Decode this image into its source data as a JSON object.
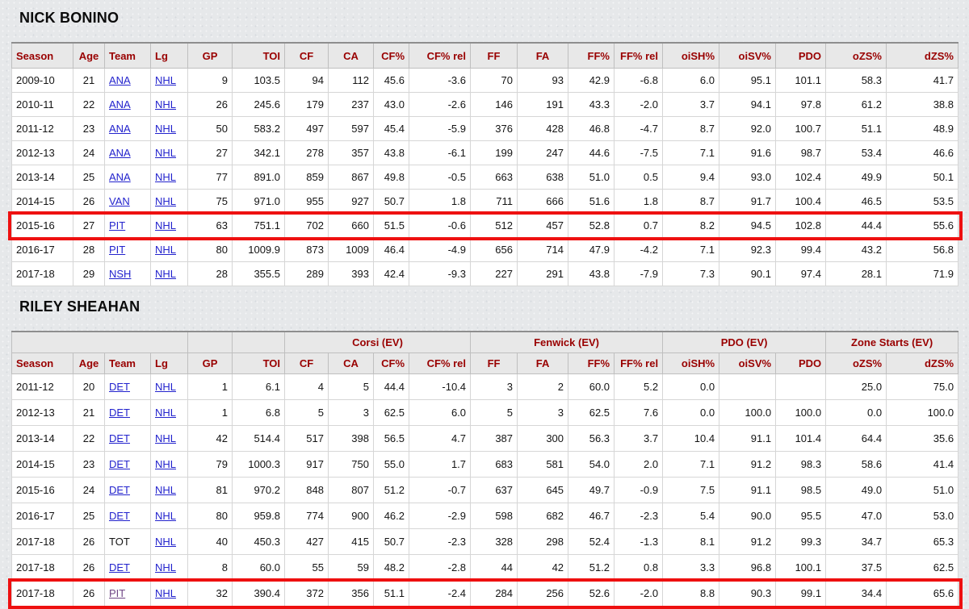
{
  "colors": {
    "header_text": "#990000",
    "header_bg": "#e8e8e8",
    "link": "#2323cd",
    "link_visited": "#6f4685",
    "highlight_border": "#ee1010",
    "title_text": "#0b0b0b",
    "cell_text": "#141414"
  },
  "columns": [
    "Season",
    "Age",
    "Team",
    "Lg",
    "GP",
    "TOI",
    "CF",
    "CA",
    "CF%",
    "CF% rel",
    "FF",
    "FA",
    "FF%",
    "FF% rel",
    "oiSH%",
    "oiSV%",
    "PDO",
    "oZS%",
    "dZS%"
  ],
  "players": [
    {
      "name": "NICK BONINO",
      "rows": [
        {
          "season": "2009-10",
          "age": "21",
          "team": "ANA",
          "team_is_link": true,
          "lg": "NHL",
          "stats": [
            "9",
            "103.5",
            "94",
            "112",
            "45.6",
            "-3.6",
            "70",
            "93",
            "42.9",
            "-6.8",
            "6.0",
            "95.1",
            "101.1",
            "58.3",
            "41.7"
          ],
          "highlight": false
        },
        {
          "season": "2010-11",
          "age": "22",
          "team": "ANA",
          "team_is_link": true,
          "lg": "NHL",
          "stats": [
            "26",
            "245.6",
            "179",
            "237",
            "43.0",
            "-2.6",
            "146",
            "191",
            "43.3",
            "-2.0",
            "3.7",
            "94.1",
            "97.8",
            "61.2",
            "38.8"
          ],
          "highlight": false
        },
        {
          "season": "2011-12",
          "age": "23",
          "team": "ANA",
          "team_is_link": true,
          "lg": "NHL",
          "stats": [
            "50",
            "583.2",
            "497",
            "597",
            "45.4",
            "-5.9",
            "376",
            "428",
            "46.8",
            "-4.7",
            "8.7",
            "92.0",
            "100.7",
            "51.1",
            "48.9"
          ],
          "highlight": false
        },
        {
          "season": "2012-13",
          "age": "24",
          "team": "ANA",
          "team_is_link": true,
          "lg": "NHL",
          "stats": [
            "27",
            "342.1",
            "278",
            "357",
            "43.8",
            "-6.1",
            "199",
            "247",
            "44.6",
            "-7.5",
            "7.1",
            "91.6",
            "98.7",
            "53.4",
            "46.6"
          ],
          "highlight": false
        },
        {
          "season": "2013-14",
          "age": "25",
          "team": "ANA",
          "team_is_link": true,
          "lg": "NHL",
          "stats": [
            "77",
            "891.0",
            "859",
            "867",
            "49.8",
            "-0.5",
            "663",
            "638",
            "51.0",
            "0.5",
            "9.4",
            "93.0",
            "102.4",
            "49.9",
            "50.1"
          ],
          "highlight": false
        },
        {
          "season": "2014-15",
          "age": "26",
          "team": "VAN",
          "team_is_link": true,
          "lg": "NHL",
          "stats": [
            "75",
            "971.0",
            "955",
            "927",
            "50.7",
            "1.8",
            "711",
            "666",
            "51.6",
            "1.8",
            "8.7",
            "91.7",
            "100.4",
            "46.5",
            "53.5"
          ],
          "highlight": false
        },
        {
          "season": "2015-16",
          "age": "27",
          "team": "PIT",
          "team_is_link": true,
          "lg": "NHL",
          "stats": [
            "63",
            "751.1",
            "702",
            "660",
            "51.5",
            "-0.6",
            "512",
            "457",
            "52.8",
            "0.7",
            "8.2",
            "94.5",
            "102.8",
            "44.4",
            "55.6"
          ],
          "highlight": true
        },
        {
          "season": "2016-17",
          "age": "28",
          "team": "PIT",
          "team_is_link": true,
          "lg": "NHL",
          "stats": [
            "80",
            "1009.9",
            "873",
            "1009",
            "46.4",
            "-4.9",
            "656",
            "714",
            "47.9",
            "-4.2",
            "7.1",
            "92.3",
            "99.4",
            "43.2",
            "56.8"
          ],
          "highlight": false
        },
        {
          "season": "2017-18",
          "age": "29",
          "team": "NSH",
          "team_is_link": true,
          "lg": "NHL",
          "stats": [
            "28",
            "355.5",
            "289",
            "393",
            "42.4",
            "-9.3",
            "227",
            "291",
            "43.8",
            "-7.9",
            "7.3",
            "90.1",
            "97.4",
            "28.1",
            "71.9"
          ],
          "highlight": false
        }
      ]
    },
    {
      "name": "RILEY SHEAHAN",
      "group_headers": [
        {
          "label": "",
          "span": 4
        },
        {
          "label": "",
          "span": 1
        },
        {
          "label": "",
          "span": 1
        },
        {
          "label": "Corsi (EV)",
          "span": 4
        },
        {
          "label": "Fenwick (EV)",
          "span": 4
        },
        {
          "label": "PDO (EV)",
          "span": 3
        },
        {
          "label": "Zone Starts (EV)",
          "span": 2
        }
      ],
      "rows": [
        {
          "season": "2011-12",
          "age": "20",
          "team": "DET",
          "team_is_link": true,
          "lg": "NHL",
          "stats": [
            "1",
            "6.1",
            "4",
            "5",
            "44.4",
            "-10.4",
            "3",
            "2",
            "60.0",
            "5.2",
            "0.0",
            "",
            "",
            "25.0",
            "75.0"
          ],
          "highlight": false
        },
        {
          "season": "2012-13",
          "age": "21",
          "team": "DET",
          "team_is_link": true,
          "lg": "NHL",
          "stats": [
            "1",
            "6.8",
            "5",
            "3",
            "62.5",
            "6.0",
            "5",
            "3",
            "62.5",
            "7.6",
            "0.0",
            "100.0",
            "100.0",
            "0.0",
            "100.0"
          ],
          "highlight": false
        },
        {
          "season": "2013-14",
          "age": "22",
          "team": "DET",
          "team_is_link": true,
          "lg": "NHL",
          "stats": [
            "42",
            "514.4",
            "517",
            "398",
            "56.5",
            "4.7",
            "387",
            "300",
            "56.3",
            "3.7",
            "10.4",
            "91.1",
            "101.4",
            "64.4",
            "35.6"
          ],
          "highlight": false
        },
        {
          "season": "2014-15",
          "age": "23",
          "team": "DET",
          "team_is_link": true,
          "lg": "NHL",
          "stats": [
            "79",
            "1000.3",
            "917",
            "750",
            "55.0",
            "1.7",
            "683",
            "581",
            "54.0",
            "2.0",
            "7.1",
            "91.2",
            "98.3",
            "58.6",
            "41.4"
          ],
          "highlight": false
        },
        {
          "season": "2015-16",
          "age": "24",
          "team": "DET",
          "team_is_link": true,
          "lg": "NHL",
          "stats": [
            "81",
            "970.2",
            "848",
            "807",
            "51.2",
            "-0.7",
            "637",
            "645",
            "49.7",
            "-0.9",
            "7.5",
            "91.1",
            "98.5",
            "49.0",
            "51.0"
          ],
          "highlight": false
        },
        {
          "season": "2016-17",
          "age": "25",
          "team": "DET",
          "team_is_link": true,
          "lg": "NHL",
          "stats": [
            "80",
            "959.8",
            "774",
            "900",
            "46.2",
            "-2.9",
            "598",
            "682",
            "46.7",
            "-2.3",
            "5.4",
            "90.0",
            "95.5",
            "47.0",
            "53.0"
          ],
          "highlight": false
        },
        {
          "season": "2017-18",
          "age": "26",
          "team": "TOT",
          "team_is_link": false,
          "lg": "NHL",
          "stats": [
            "40",
            "450.3",
            "427",
            "415",
            "50.7",
            "-2.3",
            "328",
            "298",
            "52.4",
            "-1.3",
            "8.1",
            "91.2",
            "99.3",
            "34.7",
            "65.3"
          ],
          "highlight": false
        },
        {
          "season": "2017-18",
          "age": "26",
          "team": "DET",
          "team_is_link": true,
          "lg": "NHL",
          "stats": [
            "8",
            "60.0",
            "55",
            "59",
            "48.2",
            "-2.8",
            "44",
            "42",
            "51.2",
            "0.8",
            "3.3",
            "96.8",
            "100.1",
            "37.5",
            "62.5"
          ],
          "highlight": false
        },
        {
          "season": "2017-18",
          "age": "26",
          "team": "PIT",
          "team_is_link": true,
          "visited": true,
          "lg": "NHL",
          "stats": [
            "32",
            "390.4",
            "372",
            "356",
            "51.1",
            "-2.4",
            "284",
            "256",
            "52.6",
            "-2.0",
            "8.8",
            "90.3",
            "99.1",
            "34.4",
            "65.6"
          ],
          "highlight": true
        }
      ]
    }
  ]
}
